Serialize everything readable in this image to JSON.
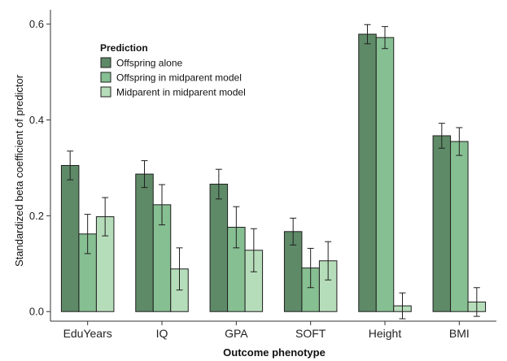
{
  "chart_data": {
    "type": "bar",
    "xlabel": "Outcome phenotype",
    "ylabel": "Standardized beta coefficient of predictor",
    "ylim": [
      -0.02,
      0.63
    ],
    "yticks": [
      0.0,
      0.2,
      0.4,
      0.6
    ],
    "ytick_labels": [
      "0.0",
      "0.2",
      "0.4",
      "0.6"
    ],
    "grid": false,
    "legend": {
      "title": "Prediction",
      "position": "top-left"
    },
    "categories": [
      "EduYears",
      "IQ",
      "GPA",
      "SOFT",
      "Height",
      "BMI"
    ],
    "series": [
      {
        "name": "Offspring alone",
        "color": "#5e8a67",
        "values": [
          0.305,
          0.287,
          0.266,
          0.167,
          0.579,
          0.367
        ],
        "error": [
          0.03,
          0.028,
          0.031,
          0.028,
          0.02,
          0.026
        ]
      },
      {
        "name": "Offspring in midparent model",
        "color": "#86bf92",
        "values": [
          0.162,
          0.223,
          0.176,
          0.091,
          0.572,
          0.355
        ],
        "error": [
          0.041,
          0.042,
          0.043,
          0.041,
          0.023,
          0.029
        ]
      },
      {
        "name": "Midparent in midparent model",
        "color": "#b6ddba",
        "values": [
          0.198,
          0.089,
          0.128,
          0.106,
          0.012,
          0.02
        ],
        "error": [
          0.04,
          0.044,
          0.045,
          0.04,
          0.027,
          0.03
        ]
      }
    ]
  }
}
